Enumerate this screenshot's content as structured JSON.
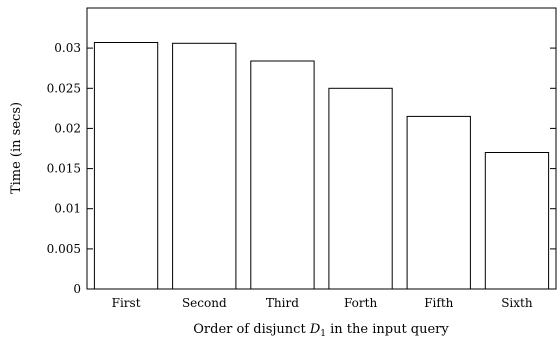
{
  "chart_data": {
    "type": "bar",
    "categories": [
      "First",
      "Second",
      "Third",
      "Forth",
      "Fifth",
      "Sixth"
    ],
    "values": [
      0.0307,
      0.0306,
      0.0284,
      0.025,
      0.0215,
      0.017
    ],
    "xlabel_prefix": "Order of disjunct ",
    "xlabel_var": "D",
    "xlabel_sub": "1",
    "xlabel_suffix": " in the input query",
    "ylabel": "Time (in secs)",
    "ylim": [
      0,
      0.035
    ],
    "yticks": [
      0,
      0.005,
      0.01,
      0.015,
      0.02,
      0.025,
      0.03
    ],
    "ytick_labels": [
      "0",
      "0.005",
      "0.01",
      "0.015",
      "0.02",
      "0.025",
      "0.03"
    ],
    "grid": false
  }
}
